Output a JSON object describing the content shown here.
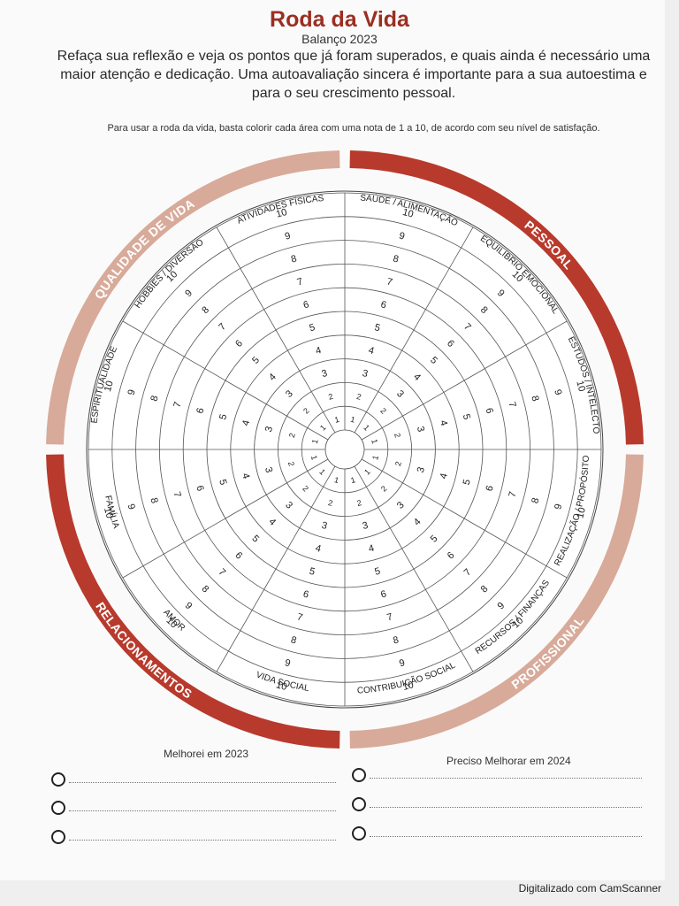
{
  "header": {
    "title": "Roda da Vida",
    "subtitle": "Balanço 2023",
    "intro": "Refaça sua reflexão e veja os pontos que já foram superados, e quais ainda é necessário uma maior atenção e dedicação. Uma autoavaliação sincera é importante para a sua autoestima e para o seu crescimento pessoal.",
    "instruction": "Para usar a roda da vida, basta colorir cada área com uma nota de 1 a 10, de acordo com seu nível de satisfação."
  },
  "wheel": {
    "quadrants": [
      {
        "label": "PESSOAL",
        "color": "#b83a2c"
      },
      {
        "label": "PROFISSIONAL",
        "color": "#d8aa9a"
      },
      {
        "label": "RELACIONAMENTOS",
        "color": "#b83a2c"
      },
      {
        "label": "QUALIDADE DE VIDA",
        "color": "#d8aa9a"
      }
    ],
    "areas": [
      "SAÚDE / ALIMENTAÇÃO",
      "EQUILÍBRIO EMOCIONAL",
      "ESTUDOS / INTELECTO",
      "REALIZAÇÃO / PROPÓSITO",
      "RECURSOS / FINANÇAS",
      "CONTRIBUIÇÃO SOCIAL",
      "VIDA SOCIAL",
      "AMOR",
      "FAMÍLIA",
      "ESPIRITUALIDADE",
      "HOBBIES / DIVERSÃO",
      "ATIVIDADES FÍSICAS"
    ],
    "scale": [
      "1",
      "2",
      "3",
      "4",
      "5",
      "6",
      "7",
      "8",
      "9",
      "10"
    ]
  },
  "notes": {
    "left_title": "Melhorei em 2023",
    "right_title": "Preciso Melhorar em 2024",
    "left_items": [
      "",
      "",
      ""
    ],
    "right_items": [
      "",
      "",
      ""
    ]
  },
  "footer": {
    "scanner": "Digitalizado com CamScanner"
  }
}
